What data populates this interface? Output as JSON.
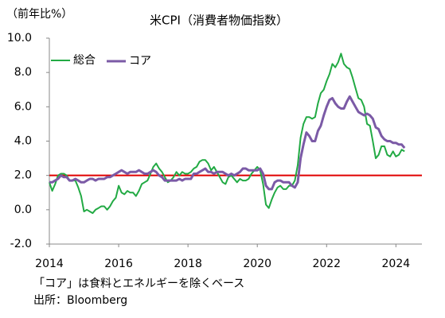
{
  "chart_data": {
    "type": "line",
    "title": "米CPI（消費者物価指数）",
    "y_label": "（前年比%）",
    "notes": [
      "「コア」は食料とエネルギーを除くベース",
      "出所：Bloomberg"
    ],
    "x": [
      2014,
      2014.083,
      2014.167,
      2014.25,
      2014.333,
      2014.417,
      2014.5,
      2014.583,
      2014.667,
      2014.75,
      2014.833,
      2014.917,
      2015,
      2015.083,
      2015.167,
      2015.25,
      2015.333,
      2015.417,
      2015.5,
      2015.583,
      2015.667,
      2015.75,
      2015.833,
      2015.917,
      2016,
      2016.083,
      2016.167,
      2016.25,
      2016.333,
      2016.417,
      2016.5,
      2016.583,
      2016.667,
      2016.75,
      2016.833,
      2016.917,
      2017,
      2017.083,
      2017.167,
      2017.25,
      2017.333,
      2017.417,
      2017.5,
      2017.583,
      2017.667,
      2017.75,
      2017.833,
      2017.917,
      2018,
      2018.083,
      2018.167,
      2018.25,
      2018.333,
      2018.417,
      2018.5,
      2018.583,
      2018.667,
      2018.75,
      2018.833,
      2018.917,
      2019,
      2019.083,
      2019.167,
      2019.25,
      2019.333,
      2019.417,
      2019.5,
      2019.583,
      2019.667,
      2019.75,
      2019.833,
      2019.917,
      2020,
      2020.083,
      2020.167,
      2020.25,
      2020.333,
      2020.417,
      2020.5,
      2020.583,
      2020.667,
      2020.75,
      2020.833,
      2020.917,
      2021,
      2021.083,
      2021.167,
      2021.25,
      2021.333,
      2021.417,
      2021.5,
      2021.583,
      2021.667,
      2021.75,
      2021.833,
      2021.917,
      2022,
      2022.083,
      2022.167,
      2022.25,
      2022.333,
      2022.417,
      2022.5,
      2022.583,
      2022.667,
      2022.75,
      2022.833,
      2022.917,
      2023,
      2023.083,
      2023.167,
      2023.25,
      2023.333,
      2023.417,
      2023.5,
      2023.583,
      2023.667,
      2023.75,
      2023.833,
      2023.917,
      2024,
      2024.083,
      2024.167,
      2024.25
    ],
    "series": [
      {
        "name": "総合",
        "color": "#22aa44",
        "values": [
          1.6,
          1.1,
          1.5,
          2.0,
          2.1,
          2.1,
          2.0,
          1.7,
          1.7,
          1.7,
          1.3,
          0.8,
          -0.1,
          0.0,
          -0.1,
          -0.2,
          0.0,
          0.1,
          0.2,
          0.2,
          0.0,
          0.2,
          0.5,
          0.7,
          1.4,
          1.0,
          0.9,
          1.1,
          1.0,
          1.0,
          0.8,
          1.1,
          1.5,
          1.6,
          1.7,
          2.1,
          2.5,
          2.7,
          2.4,
          2.2,
          1.9,
          1.6,
          1.7,
          1.9,
          2.2,
          2.0,
          2.2,
          2.1,
          2.1,
          2.2,
          2.4,
          2.5,
          2.8,
          2.9,
          2.9,
          2.7,
          2.3,
          2.5,
          2.2,
          1.9,
          1.6,
          1.5,
          1.9,
          2.0,
          1.8,
          1.6,
          1.8,
          1.7,
          1.7,
          1.8,
          2.1,
          2.3,
          2.5,
          2.3,
          1.5,
          0.3,
          0.1,
          0.6,
          1.0,
          1.3,
          1.4,
          1.2,
          1.2,
          1.4,
          1.4,
          1.7,
          2.6,
          4.2,
          5.0,
          5.4,
          5.4,
          5.3,
          5.4,
          6.2,
          6.8,
          7.0,
          7.5,
          7.9,
          8.5,
          8.3,
          8.6,
          9.1,
          8.5,
          8.3,
          8.2,
          7.7,
          7.1,
          6.5,
          6.4,
          6.0,
          5.0,
          4.9,
          4.0,
          3.0,
          3.2,
          3.7,
          3.7,
          3.2,
          3.1,
          3.4,
          3.1,
          3.2,
          3.5,
          3.4
        ]
      },
      {
        "name": "コア",
        "color": "#7b5aa6",
        "values": [
          1.6,
          1.6,
          1.7,
          1.8,
          2.0,
          1.9,
          1.9,
          1.7,
          1.7,
          1.8,
          1.7,
          1.6,
          1.6,
          1.7,
          1.8,
          1.8,
          1.7,
          1.8,
          1.8,
          1.8,
          1.9,
          1.9,
          2.0,
          2.1,
          2.2,
          2.3,
          2.2,
          2.1,
          2.2,
          2.2,
          2.2,
          2.3,
          2.2,
          2.1,
          2.1,
          2.2,
          2.3,
          2.2,
          2.0,
          1.9,
          1.7,
          1.7,
          1.7,
          1.7,
          1.7,
          1.8,
          1.7,
          1.8,
          1.8,
          1.8,
          2.1,
          2.1,
          2.2,
          2.3,
          2.4,
          2.2,
          2.2,
          2.1,
          2.2,
          2.2,
          2.2,
          2.1,
          2.0,
          2.1,
          2.0,
          2.1,
          2.2,
          2.4,
          2.4,
          2.3,
          2.3,
          2.3,
          2.3,
          2.4,
          2.1,
          1.4,
          1.2,
          1.2,
          1.6,
          1.7,
          1.7,
          1.6,
          1.6,
          1.6,
          1.4,
          1.3,
          1.6,
          3.0,
          3.8,
          4.5,
          4.3,
          4.0,
          4.0,
          4.6,
          4.9,
          5.5,
          6.0,
          6.4,
          6.5,
          6.2,
          6.0,
          5.9,
          5.9,
          6.3,
          6.6,
          6.3,
          6.0,
          5.7,
          5.6,
          5.5,
          5.6,
          5.5,
          5.3,
          4.8,
          4.7,
          4.3,
          4.1,
          4.0,
          4.0,
          3.9,
          3.9,
          3.8,
          3.8,
          3.6
        ]
      }
    ],
    "target_line": {
      "value": 2,
      "color": "#e00000"
    },
    "xlim": [
      2014,
      2024.75
    ],
    "xticks": [
      2014,
      2016,
      2018,
      2020,
      2022,
      2024
    ],
    "ylim": [
      -2,
      10
    ],
    "yticks": [
      {
        "value": -2,
        "label": "-2.0"
      },
      {
        "value": 0,
        "label": "0.0"
      },
      {
        "value": 2,
        "label": "2.0"
      },
      {
        "value": 4,
        "label": "4.0"
      },
      {
        "value": 6,
        "label": "6.0"
      },
      {
        "value": 8,
        "label": "8.0"
      },
      {
        "value": 10,
        "label": "10.0"
      }
    ],
    "grid": false,
    "legend": "upper left"
  }
}
